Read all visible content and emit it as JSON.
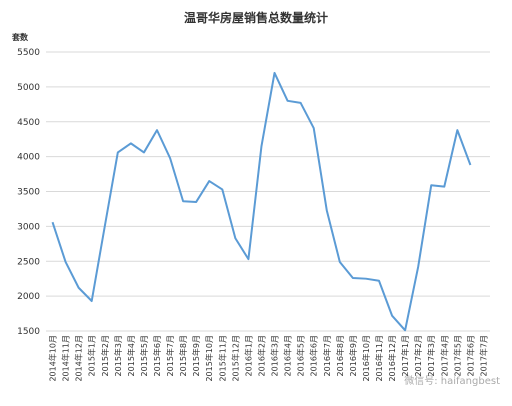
{
  "chart_data": {
    "type": "line",
    "title": "温哥华房屋销售总数量统计",
    "y_label": "套数",
    "categories": [
      "2014年10月",
      "2014年11月",
      "2014年12月",
      "2015年1月",
      "2015年2月",
      "2015年3月",
      "2015年4月",
      "2015年5月",
      "2015年6月",
      "2015年7月",
      "2015年8月",
      "2015年9月",
      "2015年10月",
      "2015年11月",
      "2015年12月",
      "2016年1月",
      "2016年2月",
      "2016年3月",
      "2016年4月",
      "2016年5月",
      "2016年6月",
      "2016年7月",
      "2016年8月",
      "2016年9月",
      "2016年10月",
      "2016年11月",
      "2016年12月",
      "2017年1月",
      "2017年2月",
      "2017年3月",
      "2017年4月",
      "2017年5月",
      "2017年6月",
      "2017年7月"
    ],
    "values": [
      3060,
      2490,
      2120,
      1930,
      3000,
      4060,
      4190,
      4060,
      4380,
      3980,
      3360,
      3350,
      3650,
      3530,
      2830,
      2530,
      4150,
      5200,
      4800,
      4770,
      4410,
      3230,
      2490,
      2260,
      2250,
      2220,
      1720,
      1510,
      2420,
      3590,
      3570,
      4380,
      3880,
      null
    ],
    "color": "#5b9bd5",
    "ylim": [
      1500,
      5500
    ],
    "yticks": [
      1500,
      2000,
      2500,
      3000,
      3500,
      4000,
      4500,
      5000,
      5500
    ],
    "grid": true,
    "watermark": "微信号: haifangbest"
  }
}
